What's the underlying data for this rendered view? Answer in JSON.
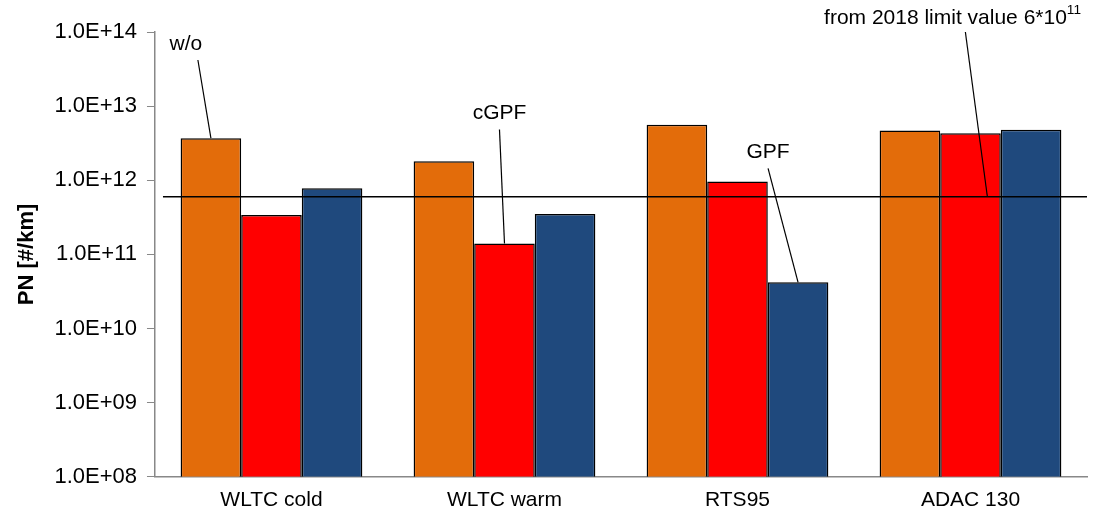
{
  "chart_data": {
    "type": "bar",
    "ylabel": "PN [#/km]",
    "categories": [
      "WLTC cold",
      "WLTC warm",
      "RTS95",
      "ADAC 130"
    ],
    "series": [
      {
        "name": "w/o",
        "color": "#e36c0a",
        "values": [
          3700000000000.0,
          1800000000000.0,
          5600000000000.0,
          4700000000000.0
        ]
      },
      {
        "name": "cGPF",
        "color": "#ff0000",
        "values": [
          340000000000.0,
          140000000000.0,
          960000000000.0,
          4300000000000.0
        ]
      },
      {
        "name": "GPF",
        "color": "#1f497d",
        "values": [
          780000000000.0,
          350000000000.0,
          42000000000.0,
          4800000000000.0
        ]
      }
    ],
    "log": "y",
    "ylim": [
      100000000.0,
      100000000000000.0
    ],
    "yticks": [
      {
        "value": 100000000.0,
        "label": "1.0E+08"
      },
      {
        "value": 1000000000.0,
        "label": "1.0E+09"
      },
      {
        "value": 10000000000.0,
        "label": "1.0E+10"
      },
      {
        "value": 100000000000.0,
        "label": "1.0E+11"
      },
      {
        "value": 1000000000000.0,
        "label": "1.0E+12"
      },
      {
        "value": 10000000000000.0,
        "label": "1.0E+13"
      },
      {
        "value": 100000000000000.0,
        "label": "1.0E+14"
      }
    ],
    "ref_lines": [
      {
        "axis": "y",
        "value": 600000000000.0,
        "label": "from 2018 limit value 6*10$^{11}$",
        "color": "#000000"
      }
    ],
    "grid": false,
    "legend": false
  }
}
